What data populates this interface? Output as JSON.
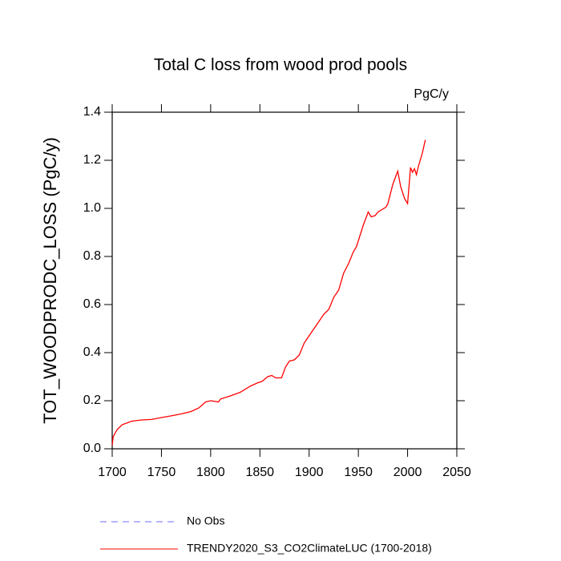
{
  "chart_data": {
    "type": "line",
    "title": "Total C loss from wood prod pools",
    "units": "PgC/y",
    "ylabel": "TOT_WOODPRODC_LOSS  (PgC/y)",
    "x": [
      1700,
      1701,
      1705,
      1710,
      1720,
      1730,
      1740,
      1750,
      1760,
      1770,
      1780,
      1788,
      1795,
      1800,
      1808,
      1810,
      1820,
      1830,
      1840,
      1848,
      1852,
      1858,
      1862,
      1866,
      1872,
      1876,
      1880,
      1885,
      1890,
      1895,
      1900,
      1910,
      1915,
      1920,
      1925,
      1930,
      1935,
      1940,
      1945,
      1948,
      1955,
      1960,
      1963,
      1967,
      1970,
      1978,
      1980,
      1985,
      1990,
      1993,
      1997,
      2000,
      2003,
      2005,
      2007,
      2009,
      2011,
      2015,
      2018
    ],
    "series": [
      {
        "name": "No Obs",
        "color": "#6b6bff",
        "style": "dashed",
        "values": [
          null,
          null,
          null,
          null,
          null,
          null,
          null,
          null,
          null,
          null,
          null,
          null,
          null,
          null,
          null,
          null,
          null,
          null,
          null,
          null,
          null,
          null,
          null,
          null,
          null,
          null,
          null,
          null,
          null,
          null,
          null,
          null,
          null,
          null,
          null,
          null,
          null,
          null,
          null,
          null,
          null,
          null,
          null,
          null,
          null,
          null,
          null,
          null,
          null,
          null,
          null,
          null,
          null,
          null,
          null,
          null,
          null,
          null,
          null
        ]
      },
      {
        "name": "TRENDY2020_S3_CO2ClimateLUC (1700-2018)",
        "color": "#ff0000",
        "style": "solid",
        "values": [
          0.015,
          0.05,
          0.08,
          0.1,
          0.115,
          0.12,
          0.122,
          0.13,
          0.137,
          0.145,
          0.155,
          0.17,
          0.195,
          0.2,
          0.195,
          0.207,
          0.22,
          0.235,
          0.26,
          0.275,
          0.28,
          0.3,
          0.305,
          0.295,
          0.295,
          0.34,
          0.365,
          0.37,
          0.39,
          0.44,
          0.47,
          0.53,
          0.56,
          0.58,
          0.63,
          0.66,
          0.73,
          0.77,
          0.82,
          0.84,
          0.93,
          0.985,
          0.965,
          0.97,
          0.985,
          1.005,
          1.02,
          1.1,
          1.155,
          1.09,
          1.04,
          1.02,
          1.17,
          1.15,
          1.165,
          1.14,
          1.175,
          1.23,
          1.285
        ]
      }
    ],
    "xlim": [
      1700,
      2050
    ],
    "xticks": [
      1700,
      1750,
      1800,
      1850,
      1900,
      1950,
      2000,
      2050
    ],
    "ylim": [
      0,
      1.4
    ],
    "yticks": [
      {
        "value": 0,
        "label": "0.0"
      },
      {
        "value": 0.2,
        "label": "0.2"
      },
      {
        "value": 0.4,
        "label": "0.4"
      },
      {
        "value": 0.6,
        "label": "0.6"
      },
      {
        "value": 0.8,
        "label": "0.8"
      },
      {
        "value": 1.0,
        "label": "1.0"
      },
      {
        "value": 1.2,
        "label": "1.2"
      },
      {
        "value": 1.4,
        "label": "1.4"
      }
    ],
    "grid": false
  }
}
